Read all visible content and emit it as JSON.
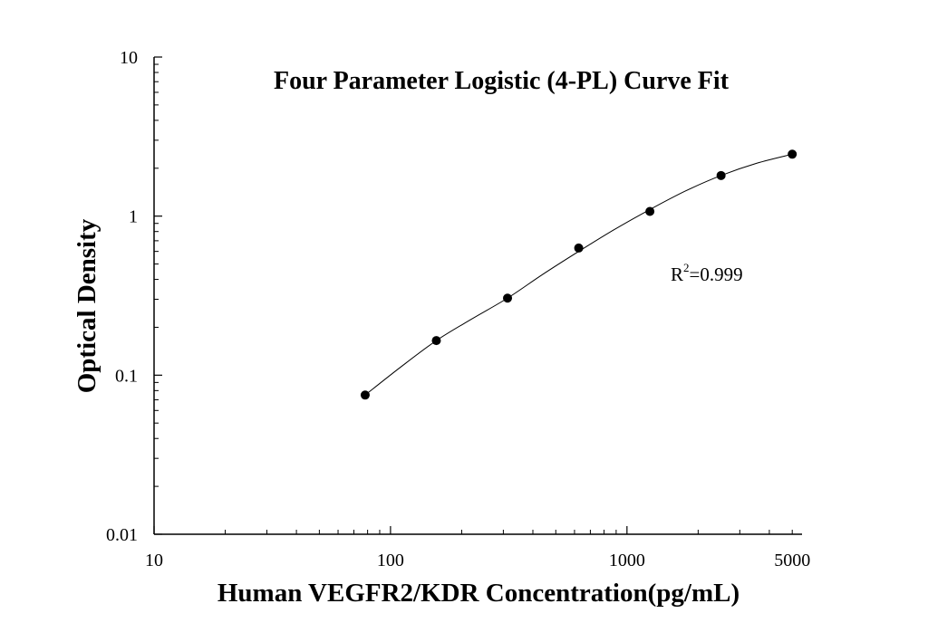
{
  "chart_data": {
    "type": "scatter",
    "title": "Four Parameter Logistic (4-PL) Curve Fit",
    "xlabel": "Human VEGFR2/KDR Concentration(pg/mL)",
    "ylabel": "Optical Density",
    "x_scale": "log",
    "y_scale": "log",
    "xlim": [
      10,
      5500
    ],
    "ylim": [
      0.01,
      10
    ],
    "x_ticks": [
      {
        "value": 10,
        "label": "10"
      },
      {
        "value": 100,
        "label": "100"
      },
      {
        "value": 1000,
        "label": "1000"
      },
      {
        "value": 5000,
        "label": "5000"
      }
    ],
    "y_ticks": [
      {
        "value": 0.01,
        "label": "0.01"
      },
      {
        "value": 0.1,
        "label": "0.1"
      },
      {
        "value": 1,
        "label": "1"
      },
      {
        "value": 10,
        "label": "10"
      }
    ],
    "points": {
      "x": [
        78.125,
        156.25,
        312.5,
        625,
        1250,
        2500,
        5000
      ],
      "y": [
        0.075,
        0.165,
        0.305,
        0.63,
        1.07,
        1.8,
        2.45
      ]
    },
    "fit_curve": {
      "model": "4PL",
      "x": [
        78.125,
        110,
        156.25,
        220,
        312.5,
        440,
        625,
        880,
        1250,
        1770,
        2500,
        3540,
        5000
      ],
      "y": [
        0.075,
        0.112,
        0.165,
        0.225,
        0.305,
        0.43,
        0.6,
        0.82,
        1.1,
        1.44,
        1.8,
        2.15,
        2.45
      ]
    },
    "annotation": {
      "base": "R",
      "sup": "2",
      "rest": "=0.999"
    },
    "grid": false,
    "legend": "none",
    "point_color": "#000000",
    "line_color": "#000000"
  }
}
